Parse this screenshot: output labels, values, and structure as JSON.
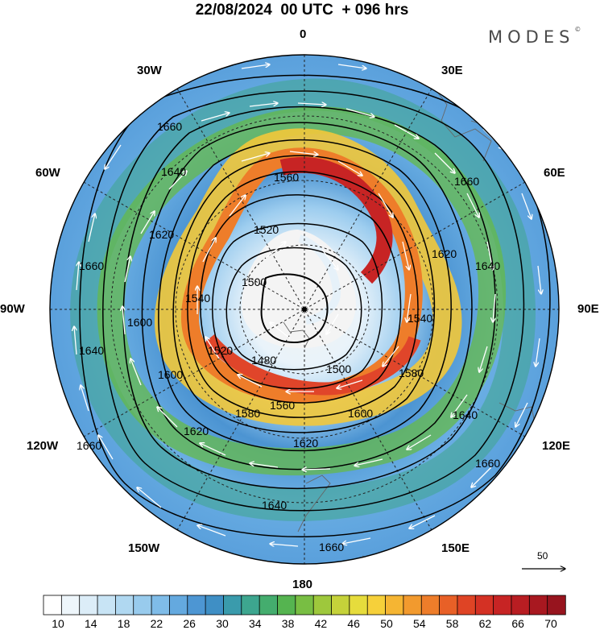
{
  "header": {
    "title": "22/08/2024  00 UTC  + 096 hrs",
    "brand": "MODES",
    "brand_mark": "©"
  },
  "longitude_labels": {
    "n0": "0",
    "w30": "30W",
    "e30": "30E",
    "w60": "60W",
    "e60": "60E",
    "w90": "90W",
    "e90": "90E",
    "w120": "120W",
    "e120": "120E",
    "w150": "150W",
    "e150": "150E",
    "s180": "180"
  },
  "contour_labels": [
    "1660",
    "1640",
    "1620",
    "1600",
    "1580",
    "1560",
    "1540",
    "1520",
    "1500",
    "1480"
  ],
  "reference_vector": {
    "label": "50"
  },
  "colorbar": {
    "labels": [
      "10",
      "14",
      "18",
      "22",
      "26",
      "30",
      "34",
      "38",
      "42",
      "46",
      "50",
      "54",
      "58",
      "62",
      "66",
      "70"
    ],
    "colors": [
      "#ffffff",
      "#eef6fb",
      "#dcedf8",
      "#c8e4f5",
      "#b0d8f1",
      "#98cbed",
      "#7fbce8",
      "#64a9df",
      "#4d96d3",
      "#3f8fc5",
      "#3a9bac",
      "#3da68f",
      "#44ad6e",
      "#55b450",
      "#78be43",
      "#9ec83c",
      "#c5d23a",
      "#e6dc3c",
      "#f6d03a",
      "#f5b533",
      "#f29a2e",
      "#ee7d2a",
      "#e86027",
      "#df4425",
      "#d43124",
      "#c72424",
      "#b81d22",
      "#a81820",
      "#97141e"
    ],
    "color_meaning": "wind speed scale"
  }
}
